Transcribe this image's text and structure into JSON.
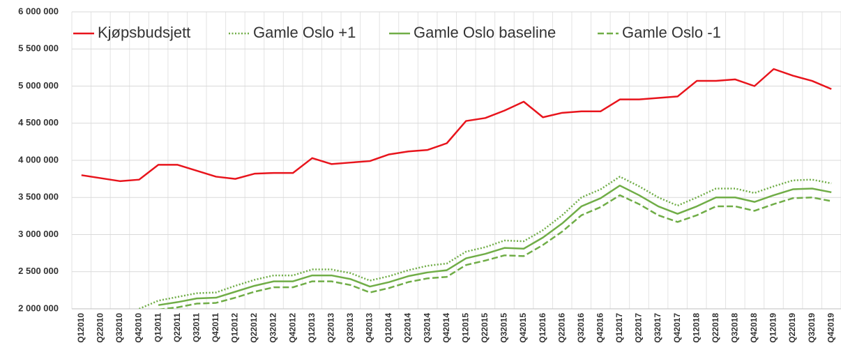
{
  "chart_data": {
    "type": "line",
    "categories": [
      "Q12010",
      "Q22010",
      "Q32010",
      "Q42010",
      "Q12011",
      "Q22011",
      "Q32011",
      "Q42011",
      "Q12012",
      "Q22012",
      "Q32012",
      "Q42012",
      "Q12013",
      "Q22013",
      "Q32013",
      "Q42013",
      "Q12014",
      "Q22014",
      "Q32014",
      "Q42014",
      "Q12015",
      "Q22015",
      "Q32015",
      "Q42015",
      "Q12016",
      "Q22016",
      "Q32016",
      "Q42016",
      "Q12017",
      "Q22017",
      "Q32017",
      "Q42017",
      "Q12018",
      "Q22018",
      "Q32018",
      "Q42018",
      "Q12019",
      "Q22019",
      "Q32019",
      "Q42019"
    ],
    "series": [
      {
        "name": "Kjøpsbudsjett",
        "color": "#e8141c",
        "style": "solid",
        "values": [
          3800000,
          3760000,
          3720000,
          3740000,
          3940000,
          3940000,
          3860000,
          3780000,
          3750000,
          3820000,
          3830000,
          3830000,
          4030000,
          3950000,
          3970000,
          3990000,
          4080000,
          4120000,
          4140000,
          4230000,
          4530000,
          4570000,
          4670000,
          4790000,
          4580000,
          4640000,
          4660000,
          4660000,
          4820000,
          4820000,
          4840000,
          4860000,
          5070000,
          5070000,
          5090000,
          5000000,
          5230000,
          5140000,
          5070000,
          4960000
        ]
      },
      {
        "name": "Gamle Oslo +1",
        "color": "#70ad47",
        "style": "dotted",
        "values": [
          null,
          null,
          null,
          2000000,
          2110000,
          2160000,
          2210000,
          2220000,
          2310000,
          2390000,
          2450000,
          2450000,
          2530000,
          2530000,
          2480000,
          2380000,
          2440000,
          2520000,
          2580000,
          2610000,
          2770000,
          2830000,
          2920000,
          2910000,
          3060000,
          3260000,
          3500000,
          3610000,
          3780000,
          3650000,
          3500000,
          3390000,
          3500000,
          3620000,
          3620000,
          3560000,
          3650000,
          3730000,
          3740000,
          3690000
        ]
      },
      {
        "name": "Gamle Oslo baseline",
        "color": "#70ad47",
        "style": "solid",
        "values": [
          null,
          null,
          null,
          null,
          2050000,
          2090000,
          2140000,
          2150000,
          2230000,
          2310000,
          2370000,
          2370000,
          2450000,
          2450000,
          2400000,
          2300000,
          2360000,
          2440000,
          2490000,
          2520000,
          2680000,
          2740000,
          2820000,
          2810000,
          2960000,
          3150000,
          3380000,
          3490000,
          3660000,
          3530000,
          3380000,
          3280000,
          3380000,
          3500000,
          3500000,
          3440000,
          3530000,
          3610000,
          3620000,
          3570000
        ]
      },
      {
        "name": "Gamle Oslo -1",
        "color": "#70ad47",
        "style": "dashed",
        "values": [
          null,
          null,
          null,
          null,
          1990000,
          2020000,
          2070000,
          2080000,
          2150000,
          2230000,
          2290000,
          2290000,
          2370000,
          2370000,
          2320000,
          2220000,
          2280000,
          2360000,
          2410000,
          2430000,
          2590000,
          2650000,
          2720000,
          2710000,
          2860000,
          3040000,
          3260000,
          3370000,
          3530000,
          3410000,
          3260000,
          3170000,
          3260000,
          3380000,
          3380000,
          3320000,
          3410000,
          3490000,
          3500000,
          3450000
        ]
      }
    ],
    "ylim": [
      2000000,
      6000000
    ],
    "yticks": [
      {
        "value": 2000000,
        "label": "2 000 000"
      },
      {
        "value": 2500000,
        "label": "2 500 000"
      },
      {
        "value": 3000000,
        "label": "3 000 000"
      },
      {
        "value": 3500000,
        "label": "3 500 000"
      },
      {
        "value": 4000000,
        "label": "4 000 000"
      },
      {
        "value": 4500000,
        "label": "4 500 000"
      },
      {
        "value": 5000000,
        "label": "5 000 000"
      },
      {
        "value": 5500000,
        "label": "5 500 000"
      },
      {
        "value": 6000000,
        "label": "6 000 000"
      }
    ],
    "grid": true,
    "legend": "top"
  }
}
